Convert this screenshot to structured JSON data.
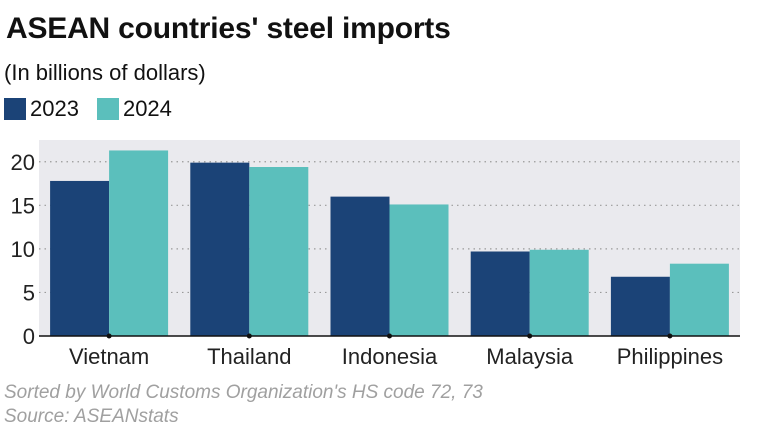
{
  "chart_data": {
    "type": "bar",
    "title": "ASEAN countries' steel imports",
    "subtitle": "(In billions of dollars)",
    "categories": [
      "Vietnam",
      "Thailand",
      "Indonesia",
      "Malaysia",
      "Philippines"
    ],
    "series": [
      {
        "name": "2023",
        "color": "#1b4377",
        "values": [
          17.8,
          19.9,
          16.0,
          9.7,
          6.8
        ]
      },
      {
        "name": "2024",
        "color": "#5bbfbc",
        "values": [
          21.3,
          19.4,
          15.1,
          9.9,
          8.3
        ]
      }
    ],
    "ylim": [
      0,
      22.5
    ],
    "yticks": [
      0,
      5,
      10,
      15,
      20
    ],
    "grid": true,
    "legend": "top-left",
    "plot_background": "#eaeaee",
    "note": "Sorted by World Customs Organization's HS code 72, 73",
    "source": "Source: ASEANstats"
  }
}
